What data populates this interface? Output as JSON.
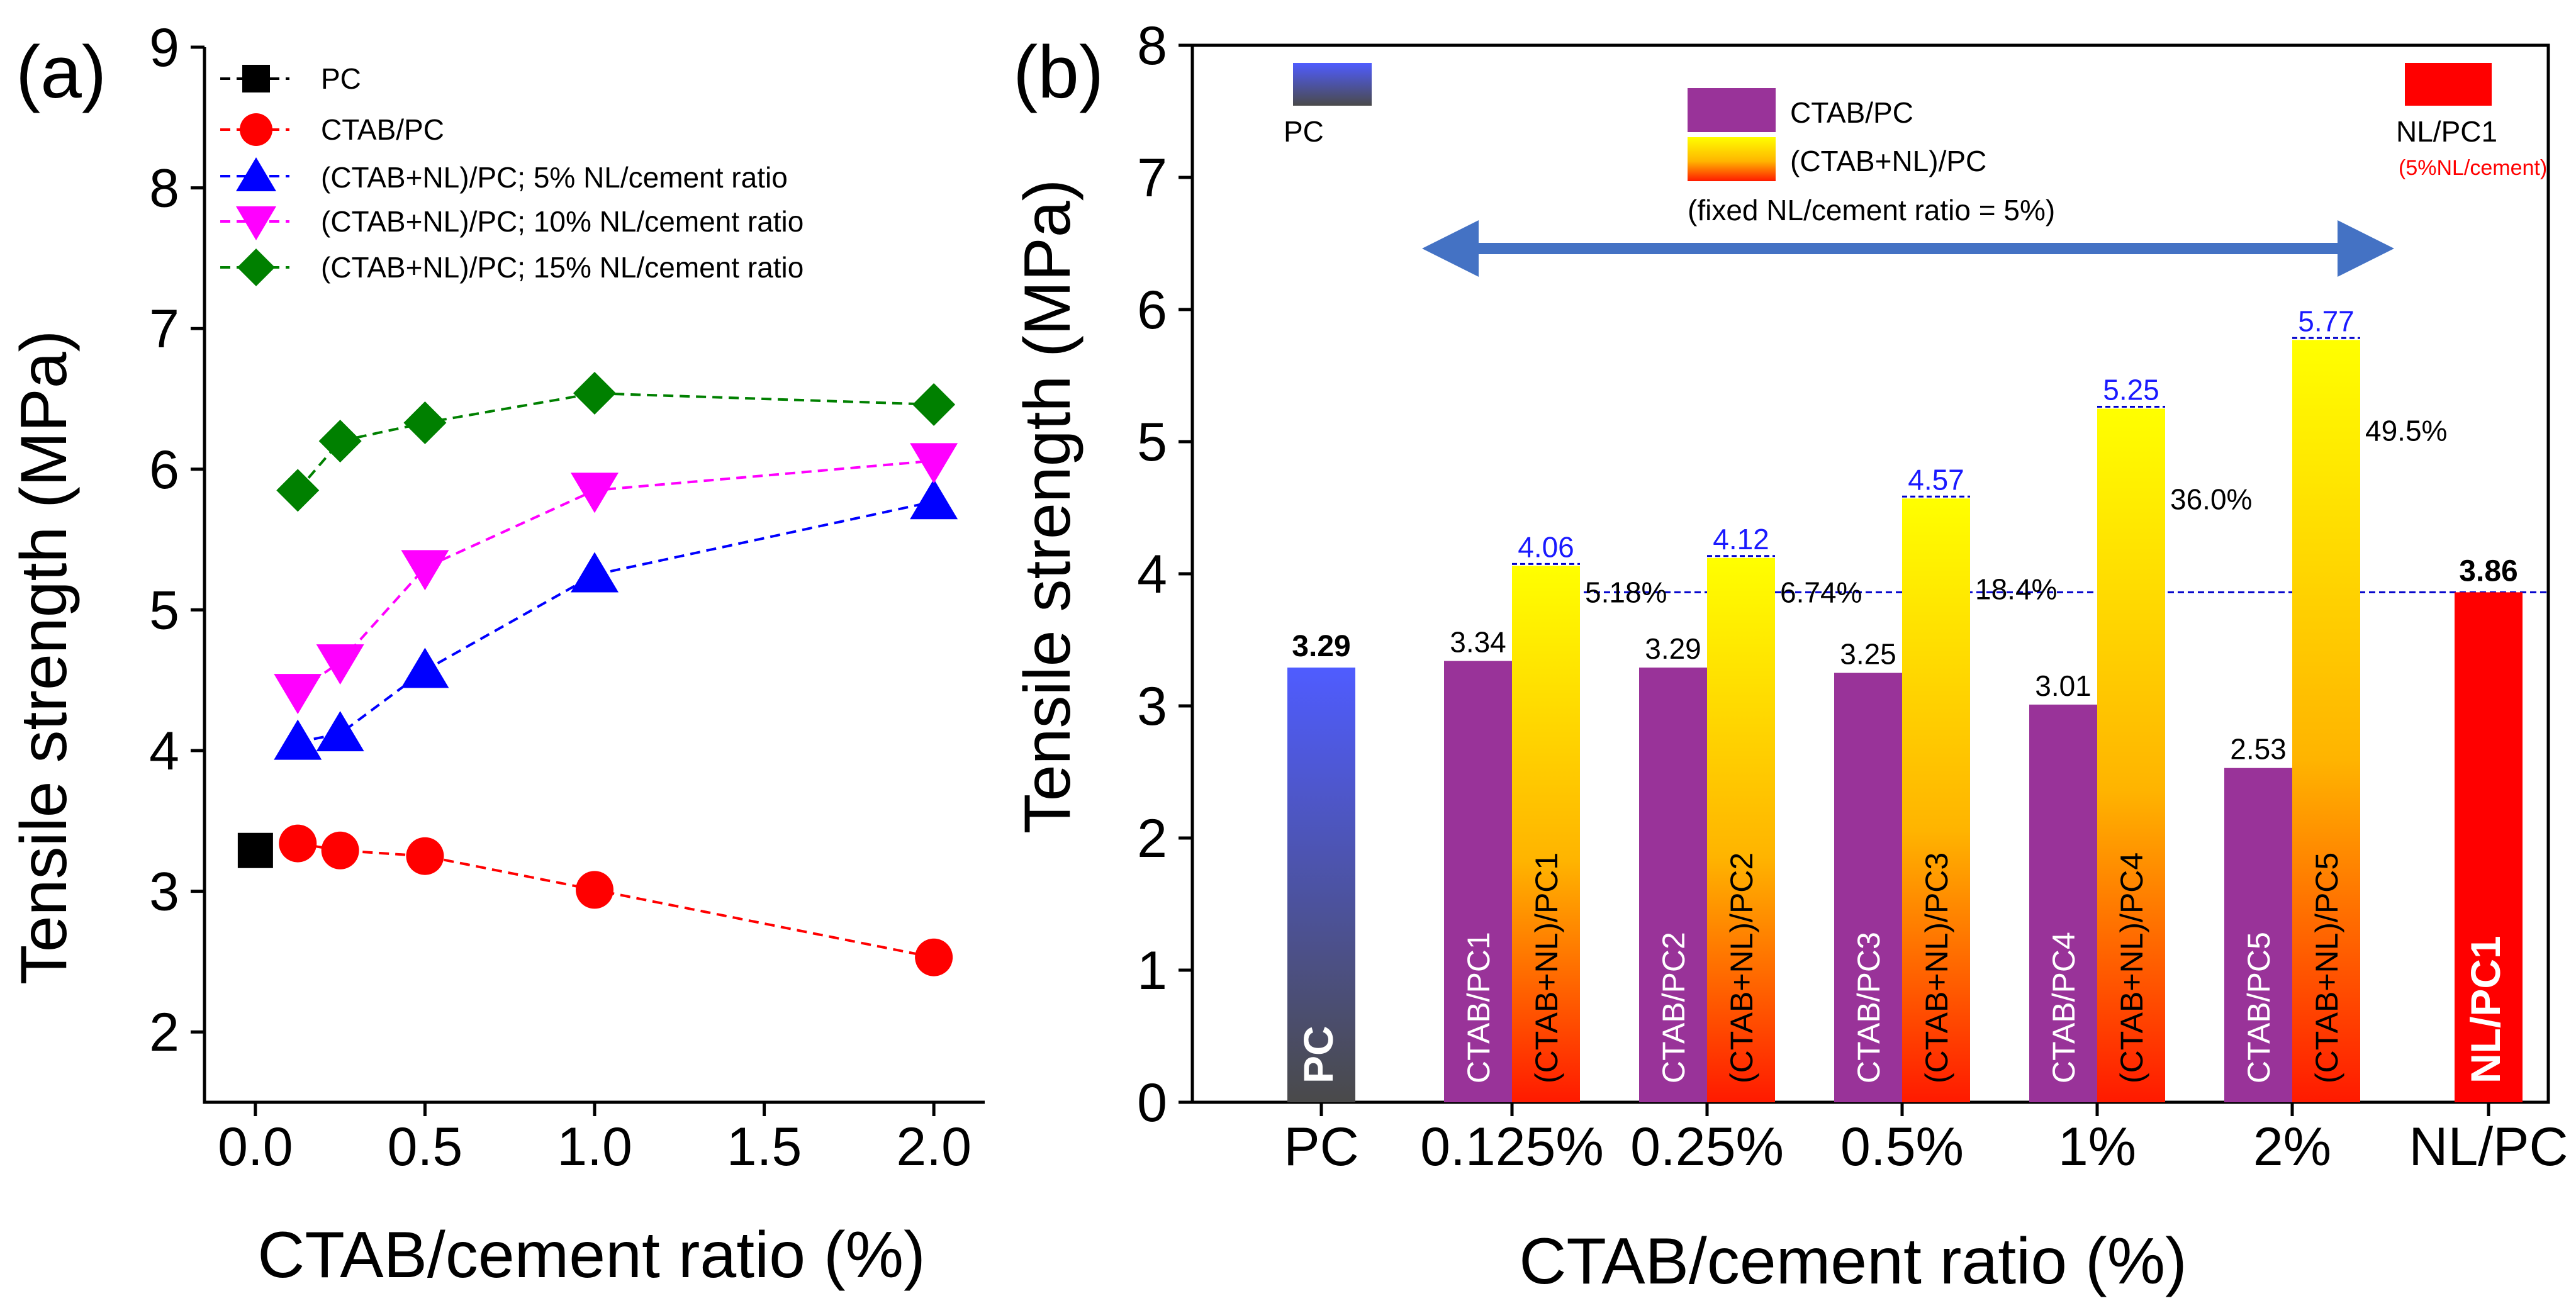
{
  "chart_data": [
    {
      "type": "line",
      "panel_label": "(a)",
      "xlabel": "CTAB/cement ratio (%)",
      "ylabel": "Tensile strength (MPa)",
      "xlim": [
        -0.15,
        2.15
      ],
      "ylim": [
        1.5,
        9
      ],
      "xticks": [
        "0.0",
        "0.5",
        "1.0",
        "1.5",
        "2.0"
      ],
      "xtick_values": [
        0,
        0.5,
        1.0,
        1.5,
        2.0
      ],
      "yticks": [
        "2",
        "3",
        "4",
        "5",
        "6",
        "7",
        "8",
        "9"
      ],
      "ytick_values": [
        2,
        3,
        4,
        5,
        6,
        7,
        8,
        9
      ],
      "legend_position": "top-left",
      "series": [
        {
          "name": "PC",
          "marker": "square",
          "color": "#000000",
          "x": [
            0
          ],
          "y": [
            3.29
          ]
        },
        {
          "name": "CTAB/PC",
          "marker": "circle",
          "color": "#ff0000",
          "x": [
            0.125,
            0.25,
            0.5,
            1.0,
            2.0
          ],
          "y": [
            3.34,
            3.29,
            3.25,
            3.01,
            2.53
          ]
        },
        {
          "name": "(CTAB+NL)/PC; 5% NL/cement ratio",
          "marker": "triangle-up",
          "color": "#0000ff",
          "x": [
            0.125,
            0.25,
            0.5,
            1.0,
            2.0
          ],
          "y": [
            4.06,
            4.12,
            4.57,
            5.25,
            5.77
          ]
        },
        {
          "name": "(CTAB+NL)/PC; 10% NL/cement ratio",
          "marker": "triangle-down",
          "color": "#ff00ff",
          "x": [
            0.125,
            0.25,
            0.5,
            1.0,
            2.0
          ],
          "y": [
            4.42,
            4.63,
            5.3,
            5.85,
            6.06
          ]
        },
        {
          "name": "(CTAB+NL)/PC; 15% NL/cement ratio",
          "marker": "diamond",
          "color": "#008000",
          "x": [
            0.125,
            0.25,
            0.5,
            1.0,
            2.0
          ],
          "y": [
            5.85,
            6.2,
            6.33,
            6.54,
            6.46
          ]
        }
      ]
    },
    {
      "type": "bar",
      "panel_label": "(b)",
      "xlabel": "CTAB/cement ratio (%)",
      "ylabel": "Tensile strength (MPa)",
      "ylim": [
        0,
        8
      ],
      "yticks": [
        "0",
        "1",
        "2",
        "3",
        "4",
        "5",
        "6",
        "7",
        "8"
      ],
      "ytick_values": [
        0,
        1,
        2,
        3,
        4,
        5,
        6,
        7,
        8
      ],
      "categories": [
        "PC",
        "0.125%",
        "0.25%",
        "0.5%",
        "1%",
        "2%",
        "NL/PC"
      ],
      "reference_value": 3.86,
      "bars": [
        {
          "group": 0,
          "slot": "single",
          "series": "PC",
          "value": 3.29,
          "value_label": "3.29",
          "inner_label": "PC"
        },
        {
          "group": 1,
          "slot": "left",
          "series": "CTAB/PC",
          "value": 3.34,
          "value_label": "3.34",
          "inner_label": "CTAB/PC1"
        },
        {
          "group": 1,
          "slot": "right",
          "series": "(CTAB+NL)/PC",
          "value": 4.06,
          "value_label": "4.06",
          "inner_label": "(CTAB+NL)/PC1",
          "increase_label": "5.18%"
        },
        {
          "group": 2,
          "slot": "left",
          "series": "CTAB/PC",
          "value": 3.29,
          "value_label": "3.29",
          "inner_label": "CTAB/PC2"
        },
        {
          "group": 2,
          "slot": "right",
          "series": "(CTAB+NL)/PC",
          "value": 4.12,
          "value_label": "4.12",
          "inner_label": "(CTAB+NL)/PC2",
          "increase_label": "6.74%"
        },
        {
          "group": 3,
          "slot": "left",
          "series": "CTAB/PC",
          "value": 3.25,
          "value_label": "3.25",
          "inner_label": "CTAB/PC3"
        },
        {
          "group": 3,
          "slot": "right",
          "series": "(CTAB+NL)/PC",
          "value": 4.57,
          "value_label": "4.57",
          "inner_label": "(CTAB+NL)/PC3",
          "increase_label": "18.4%"
        },
        {
          "group": 4,
          "slot": "left",
          "series": "CTAB/PC",
          "value": 3.01,
          "value_label": "3.01",
          "inner_label": "CTAB/PC4"
        },
        {
          "group": 4,
          "slot": "right",
          "series": "(CTAB+NL)/PC",
          "value": 5.25,
          "value_label": "5.25",
          "inner_label": "(CTAB+NL)/PC4",
          "increase_label": "36.0%"
        },
        {
          "group": 5,
          "slot": "left",
          "series": "CTAB/PC",
          "value": 2.53,
          "value_label": "2.53",
          "inner_label": "CTAB/PC5"
        },
        {
          "group": 5,
          "slot": "right",
          "series": "(CTAB+NL)/PC",
          "value": 5.77,
          "value_label": "5.77",
          "inner_label": "(CTAB+NL)/PC5",
          "increase_label": "49.5%"
        },
        {
          "group": 6,
          "slot": "single",
          "series": "NL/PC1",
          "value": 3.86,
          "value_label": "3.86",
          "inner_label": "NL/PC1"
        }
      ],
      "legend": {
        "pc": "PC",
        "ctab": "CTAB/PC",
        "ctab_nl": "(CTAB+NL)/PC",
        "note": "(fixed NL/cement ratio = 5%)",
        "nlpc": "NL/PC1",
        "nlpc_note": "(5%NL/cement)"
      },
      "colors": {
        "pc_top": "#4f5cff",
        "pc_bottom": "#4a4a4a",
        "ctab": "#993399",
        "gradient_top": "#ffff00",
        "gradient_bottom": "#ff1a00",
        "nlpc": "#ff0000",
        "arrow": "#4472c4",
        "reference": "#0000cc"
      }
    }
  ]
}
